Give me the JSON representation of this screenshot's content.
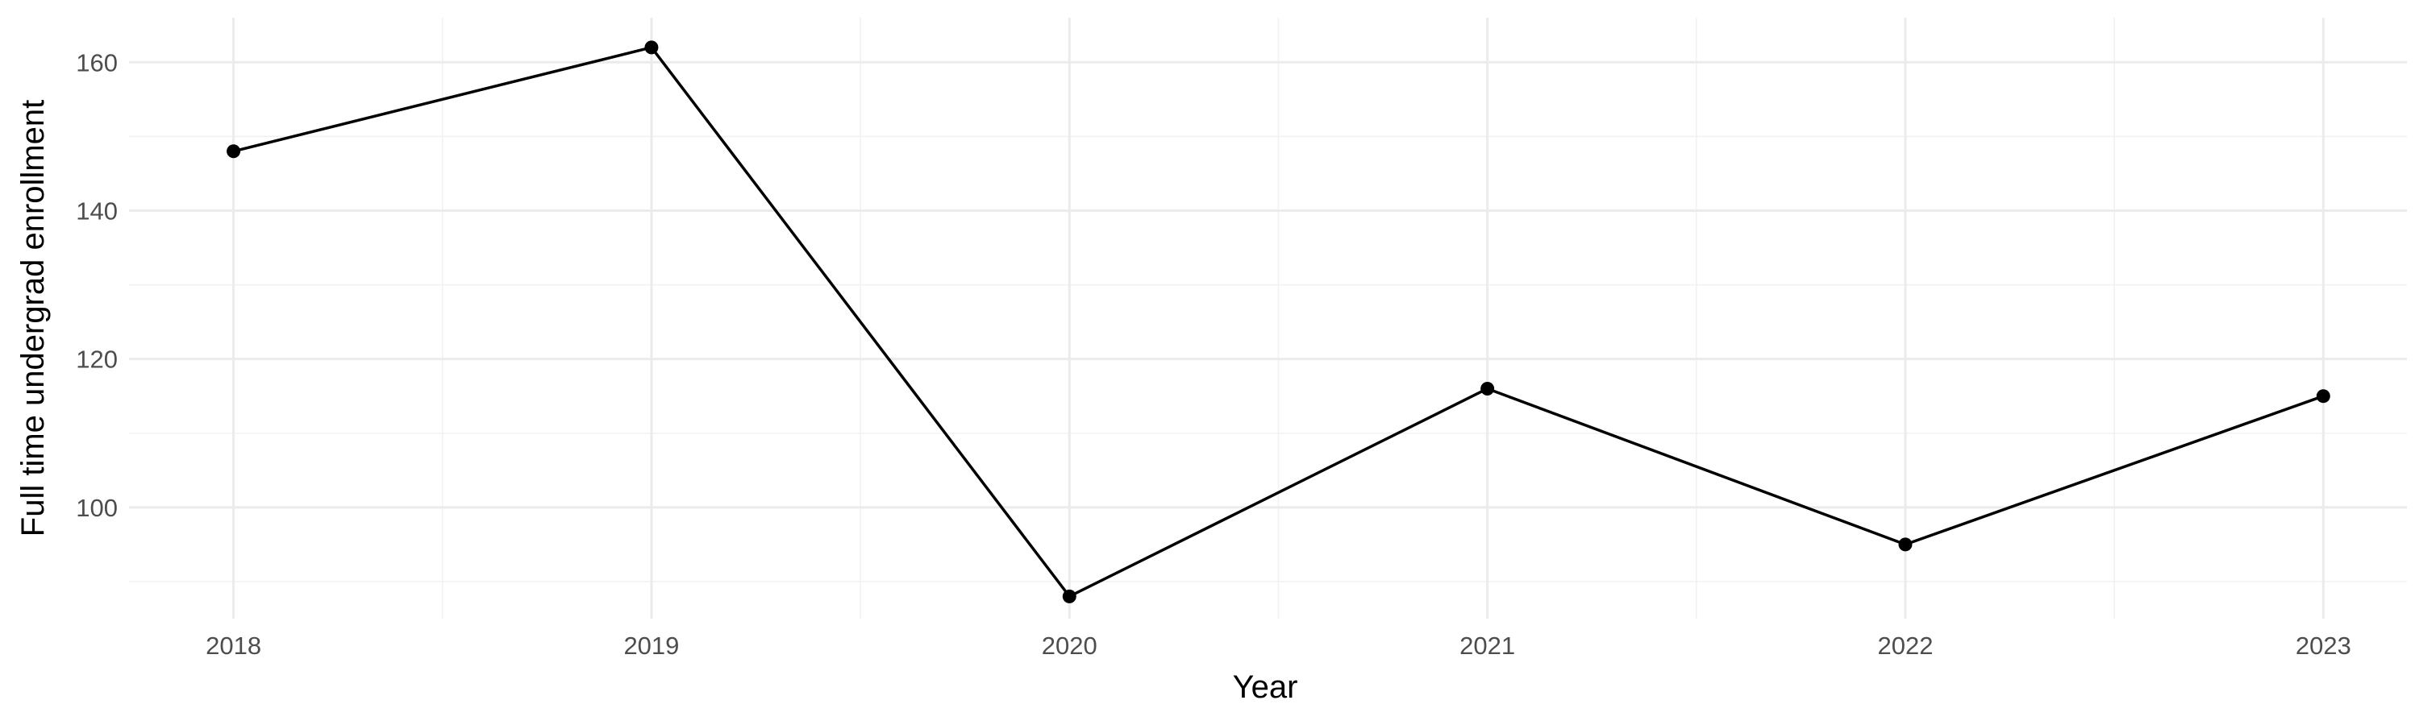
{
  "chart_data": {
    "type": "line",
    "x": [
      2018,
      2019,
      2020,
      2021,
      2022,
      2023
    ],
    "series": [
      {
        "values": [
          148,
          162,
          88,
          116,
          95,
          115
        ]
      }
    ],
    "title": "",
    "xlabel": "Year",
    "ylabel": "Full time undergrad enrollment",
    "xlim": [
      2017.75,
      2023.2
    ],
    "ylim": [
      85,
      166
    ],
    "x_ticks": [
      2018,
      2019,
      2020,
      2021,
      2022,
      2023
    ],
    "y_ticks": [
      100,
      120,
      140,
      160
    ],
    "x_tick_labels": [
      "2018",
      "2019",
      "2020",
      "2021",
      "2022",
      "2023"
    ],
    "y_tick_labels": [
      "100",
      "120",
      "140",
      "160"
    ],
    "grid": true,
    "line_color": "#000000",
    "grid_color": "#ebebeb",
    "theme": "minimal"
  }
}
